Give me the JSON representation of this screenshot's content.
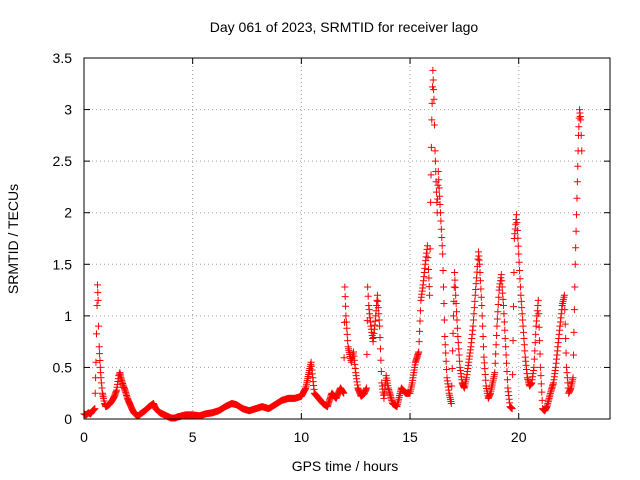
{
  "chart_data": {
    "type": "scatter",
    "title": "Day 061 of 2023, SRMTID for receiver lago",
    "xlabel": "GPS time / hours",
    "ylabel": "SRMTID / TECUs",
    "xlim": [
      0,
      24.2
    ],
    "ylim": [
      0,
      3.5
    ],
    "x_ticks": [
      0,
      5,
      10,
      15,
      20
    ],
    "x_tick_labels": [
      "0",
      "5",
      "10",
      "15",
      "20"
    ],
    "y_ticks": [
      0,
      0.5,
      1,
      1.5,
      2,
      2.5,
      3,
      3.5
    ],
    "y_tick_labels": [
      "0",
      "0.5",
      "1",
      "1.5",
      "2",
      "2.5",
      "3",
      "3.5"
    ],
    "grid": true,
    "marker": "+",
    "color": "#ff0000",
    "series": [
      {
        "name": "SRMTID",
        "x": [
          0.0,
          0.1,
          0.2,
          0.3,
          0.4,
          0.5,
          0.55,
          0.6,
          0.62,
          0.65,
          0.67,
          0.7,
          0.75,
          0.8,
          0.85,
          0.9,
          0.95,
          1.0,
          1.1,
          1.2,
          1.3,
          1.4,
          1.5,
          1.6,
          1.65,
          1.7,
          1.8,
          1.9,
          2.0,
          2.1,
          2.2,
          2.3,
          2.4,
          2.5,
          2.6,
          2.8,
          3.0,
          3.2,
          3.3,
          3.5,
          3.7,
          3.9,
          4.0,
          4.1,
          4.2,
          4.3,
          4.5,
          4.7,
          5.0,
          5.3,
          5.6,
          5.9,
          6.2,
          6.5,
          6.8,
          7.0,
          7.3,
          7.6,
          7.9,
          8.2,
          8.5,
          8.8,
          9.1,
          9.4,
          9.7,
          10.0,
          10.2,
          10.35,
          10.45,
          10.6,
          10.8,
          11.0,
          11.2,
          11.4,
          11.6,
          11.8,
          11.95,
          12.0,
          12.05,
          12.15,
          12.3,
          12.4,
          12.5,
          12.6,
          12.75,
          12.9,
          13.0,
          13.05,
          13.1,
          13.2,
          13.3,
          13.4,
          13.5,
          13.6,
          13.7,
          13.8,
          13.9,
          14.0,
          14.2,
          14.4,
          14.6,
          14.8,
          15.0,
          15.1,
          15.25,
          15.4,
          15.5,
          15.6,
          15.7,
          15.8,
          15.85,
          15.9,
          15.95,
          16.0,
          16.05,
          16.1,
          16.15,
          16.2,
          16.25,
          16.3,
          16.4,
          16.5,
          16.6,
          16.7,
          16.8,
          16.9,
          17.0,
          17.05,
          17.1,
          17.2,
          17.3,
          17.4,
          17.5,
          17.6,
          17.7,
          17.8,
          17.9,
          18.0,
          18.1,
          18.15,
          18.2,
          18.3,
          18.4,
          18.5,
          18.6,
          18.7,
          18.8,
          18.9,
          19.0,
          19.1,
          19.2,
          19.3,
          19.4,
          19.5,
          19.6,
          19.7,
          19.8,
          19.9,
          20.0,
          20.1,
          20.2,
          20.3,
          20.4,
          20.5,
          20.6,
          20.7,
          20.8,
          20.9,
          21.0,
          21.1,
          21.2,
          21.3,
          21.4,
          21.5,
          21.6,
          21.7,
          21.8,
          21.9,
          22.0,
          22.1,
          22.2,
          22.3,
          22.4,
          22.5,
          22.6,
          22.7,
          22.75,
          22.8,
          22.85,
          22.9
        ],
        "y": [
          0.05,
          0.04,
          0.06,
          0.05,
          0.08,
          0.1,
          0.55,
          1.1,
          1.3,
          1.15,
          0.9,
          0.7,
          0.5,
          0.35,
          0.25,
          0.2,
          0.15,
          0.12,
          0.13,
          0.15,
          0.18,
          0.22,
          0.28,
          0.42,
          0.45,
          0.4,
          0.33,
          0.27,
          0.2,
          0.15,
          0.1,
          0.06,
          0.04,
          0.03,
          0.05,
          0.08,
          0.12,
          0.15,
          0.1,
          0.06,
          0.04,
          0.02,
          0.01,
          0.01,
          0.01,
          0.02,
          0.03,
          0.04,
          0.04,
          0.03,
          0.05,
          0.06,
          0.08,
          0.12,
          0.15,
          0.14,
          0.1,
          0.08,
          0.1,
          0.12,
          0.1,
          0.14,
          0.18,
          0.2,
          0.2,
          0.22,
          0.3,
          0.45,
          0.55,
          0.25,
          0.2,
          0.15,
          0.12,
          0.25,
          0.2,
          0.3,
          0.25,
          1.28,
          1.0,
          0.7,
          0.55,
          0.65,
          0.45,
          0.3,
          0.22,
          0.25,
          0.3,
          1.28,
          1.1,
          0.9,
          0.75,
          0.95,
          1.2,
          0.9,
          0.35,
          0.2,
          0.42,
          0.3,
          0.15,
          0.12,
          0.3,
          0.25,
          0.25,
          0.35,
          0.55,
          0.65,
          1.15,
          1.3,
          1.5,
          1.68,
          1.45,
          1.2,
          2.1,
          2.9,
          3.38,
          3.1,
          2.6,
          2.3,
          2.0,
          2.4,
          2.0,
          1.6,
          0.8,
          0.4,
          0.25,
          0.15,
          1.0,
          1.42,
          1.2,
          0.8,
          0.5,
          0.35,
          0.3,
          0.4,
          0.55,
          0.7,
          0.9,
          1.2,
          1.48,
          1.62,
          1.5,
          1.1,
          0.6,
          0.32,
          0.2,
          0.25,
          0.35,
          0.45,
          0.9,
          1.25,
          1.4,
          1.1,
          0.7,
          0.3,
          0.12,
          0.1,
          1.75,
          1.98,
          1.6,
          1.2,
          0.9,
          0.6,
          0.4,
          0.32,
          0.35,
          0.5,
          0.9,
          1.15,
          0.5,
          0.1,
          0.08,
          0.12,
          0.2,
          0.28,
          0.35,
          0.5,
          0.7,
          0.9,
          1.1,
          1.2,
          0.5,
          0.25,
          0.3,
          0.4,
          1.5,
          2.3,
          2.75,
          3.0,
          2.9,
          2.6
        ]
      }
    ]
  }
}
